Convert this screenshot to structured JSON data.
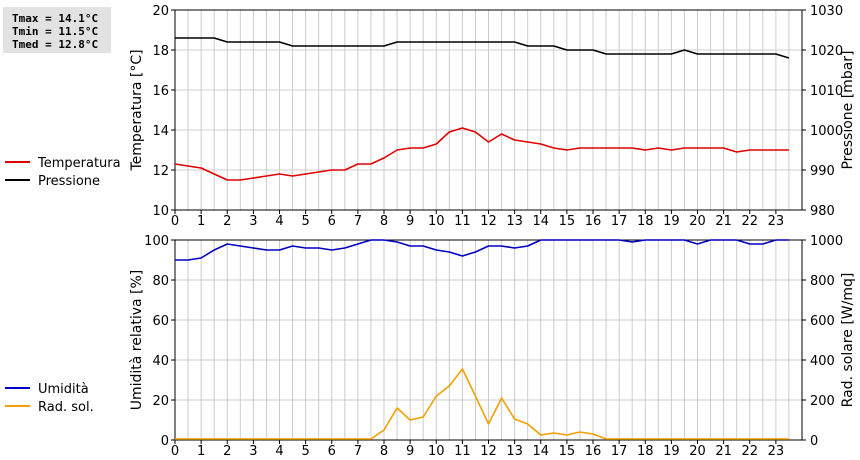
{
  "stats": {
    "tmax": "Tmax = 14.1°C",
    "tmin": "Tmin = 11.5°C",
    "tmed": "Tmed = 12.8°C"
  },
  "colors": {
    "temperature": "#e00000",
    "pressure": "#000000",
    "humidity": "#0000c0",
    "radiation": "#f0a000",
    "grid": "#cccccc"
  },
  "chart_data": [
    {
      "type": "line",
      "xlim": [
        0,
        24
      ],
      "xticks": [
        "0",
        "1",
        "2",
        "3",
        "4",
        "5",
        "6",
        "7",
        "8",
        "9",
        "10",
        "11",
        "12",
        "13",
        "14",
        "15",
        "16",
        "17",
        "18",
        "19",
        "20",
        "21",
        "22",
        "23"
      ],
      "grid": true,
      "legend_position": "left",
      "y_left": {
        "label": "Temperatura [°C]",
        "lim": [
          10,
          20
        ],
        "ticks": [
          "10",
          "12",
          "14",
          "16",
          "18",
          "20"
        ]
      },
      "y_right": {
        "label": "Pressione [mbar]",
        "lim": [
          980,
          1030
        ],
        "ticks": [
          "980",
          "990",
          "1000",
          "1010",
          "1020",
          "1030"
        ]
      },
      "series": [
        {
          "name": "Temperatura",
          "axis": "left",
          "x": [
            0,
            0.5,
            1,
            1.5,
            2,
            2.5,
            3,
            3.5,
            4,
            4.5,
            5,
            5.5,
            6,
            6.5,
            7,
            7.5,
            8,
            8.5,
            9,
            9.5,
            10,
            10.5,
            11,
            11.5,
            12,
            12.5,
            13,
            13.5,
            14,
            14.5,
            15,
            15.5,
            16,
            16.5,
            17,
            17.5,
            18,
            18.5,
            19,
            19.5,
            20,
            20.5,
            21,
            21.5,
            22,
            22.5,
            23,
            23.5
          ],
          "y": [
            12.3,
            12.2,
            12.1,
            11.8,
            11.5,
            11.5,
            11.6,
            11.7,
            11.8,
            11.7,
            11.8,
            11.9,
            12.0,
            12.0,
            12.3,
            12.3,
            12.6,
            13.0,
            13.1,
            13.1,
            13.3,
            13.9,
            14.1,
            13.9,
            13.4,
            13.8,
            13.5,
            13.4,
            13.3,
            13.1,
            13.0,
            13.1,
            13.1,
            13.1,
            13.1,
            13.1,
            13.0,
            13.1,
            13.0,
            13.1,
            13.1,
            13.1,
            13.1,
            12.9,
            13.0,
            13.0,
            13.0,
            13.0
          ]
        },
        {
          "name": "Pressione",
          "axis": "right",
          "x": [
            0,
            0.5,
            1,
            1.5,
            2,
            2.5,
            3,
            3.5,
            4,
            4.5,
            5,
            5.5,
            6,
            6.5,
            7,
            7.5,
            8,
            8.5,
            9,
            9.5,
            10,
            10.5,
            11,
            11.5,
            12,
            12.5,
            13,
            13.5,
            14,
            14.5,
            15,
            15.5,
            16,
            16.5,
            17,
            17.5,
            18,
            18.5,
            19,
            19.5,
            20,
            20.5,
            21,
            21.5,
            22,
            22.5,
            23,
            23.5
          ],
          "y": [
            1023,
            1023,
            1023,
            1023,
            1022,
            1022,
            1022,
            1022,
            1022,
            1021,
            1021,
            1021,
            1021,
            1021,
            1021,
            1021,
            1021,
            1022,
            1022,
            1022,
            1022,
            1022,
            1022,
            1022,
            1022,
            1022,
            1022,
            1021,
            1021,
            1021,
            1020,
            1020,
            1020,
            1019,
            1019,
            1019,
            1019,
            1019,
            1019,
            1020,
            1019,
            1019,
            1019,
            1019,
            1019,
            1019,
            1019,
            1018
          ]
        }
      ]
    },
    {
      "type": "line",
      "xlim": [
        0,
        24
      ],
      "xticks": [
        "0",
        "1",
        "2",
        "3",
        "4",
        "5",
        "6",
        "7",
        "8",
        "9",
        "10",
        "11",
        "12",
        "13",
        "14",
        "15",
        "16",
        "17",
        "18",
        "19",
        "20",
        "21",
        "22",
        "23"
      ],
      "grid": true,
      "legend_position": "left",
      "y_left": {
        "label": "Umidità relativa [%]",
        "lim": [
          0,
          100
        ],
        "ticks": [
          "0",
          "20",
          "40",
          "60",
          "80",
          "100"
        ]
      },
      "y_right": {
        "label": "Rad. solare [W/mq]",
        "lim": [
          0,
          1000
        ],
        "ticks": [
          "0",
          "200",
          "400",
          "600",
          "800",
          "1000"
        ]
      },
      "series": [
        {
          "name": "Umidità",
          "axis": "left",
          "x": [
            0,
            0.5,
            1,
            1.5,
            2,
            2.5,
            3,
            3.5,
            4,
            4.5,
            5,
            5.5,
            6,
            6.5,
            7,
            7.5,
            8,
            8.5,
            9,
            9.5,
            10,
            10.5,
            11,
            11.5,
            12,
            12.5,
            13,
            13.5,
            14,
            14.5,
            15,
            15.5,
            16,
            16.5,
            17,
            17.5,
            18,
            18.5,
            19,
            19.5,
            20,
            20.5,
            21,
            21.5,
            22,
            22.5,
            23,
            23.5
          ],
          "y": [
            90,
            90,
            91,
            95,
            98,
            97,
            96,
            95,
            95,
            97,
            96,
            96,
            95,
            96,
            98,
            100,
            100,
            99,
            97,
            97,
            95,
            94,
            92,
            94,
            97,
            97,
            96,
            97,
            100,
            100,
            100,
            100,
            100,
            100,
            100,
            99,
            100,
            100,
            100,
            100,
            98,
            100,
            100,
            100,
            98,
            98,
            100,
            100
          ]
        },
        {
          "name": "Rad. sol.",
          "axis": "right",
          "x": [
            0,
            1,
            2,
            3,
            4,
            5,
            6,
            7,
            7.5,
            8,
            8.5,
            9,
            9.5,
            10,
            10.5,
            11,
            11.5,
            12,
            12.5,
            13,
            13.5,
            14,
            14.5,
            15,
            15.5,
            16,
            16.5,
            17,
            18,
            19,
            20,
            21,
            22,
            23,
            23.5
          ],
          "y": [
            5,
            5,
            5,
            5,
            5,
            5,
            5,
            5,
            5,
            50,
            160,
            100,
            115,
            220,
            270,
            355,
            220,
            80,
            210,
            105,
            80,
            25,
            35,
            25,
            40,
            30,
            5,
            5,
            5,
            5,
            5,
            5,
            5,
            5,
            5
          ]
        }
      ]
    }
  ]
}
